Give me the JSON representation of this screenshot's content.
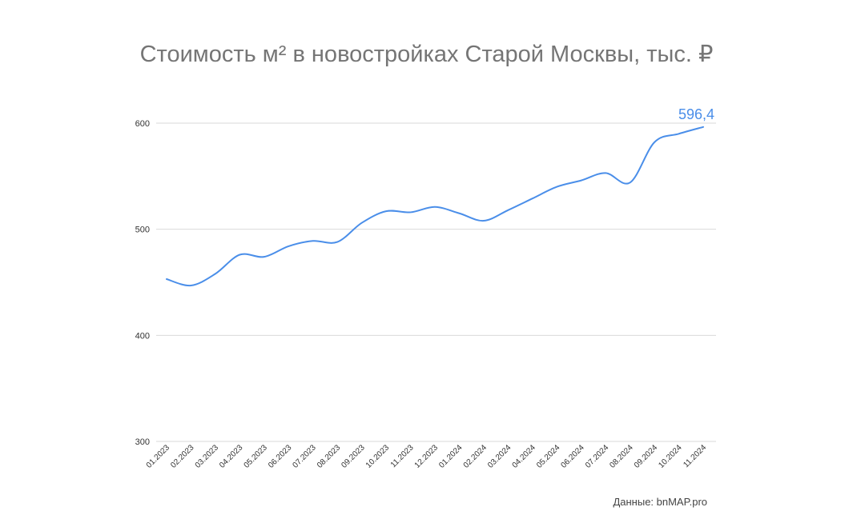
{
  "colors": {
    "line": "#4a8ee9",
    "last_label": "#4a8ee9",
    "grid": "#d9d9d9",
    "title": "#757575",
    "tick": "#333333"
  },
  "chart_data": {
    "type": "line",
    "title": "Стоимость м² в новостройках Старой Москвы, тыс. ₽",
    "xlabel": "",
    "ylabel": "",
    "ylim": [
      300,
      600
    ],
    "yticks": [
      {
        "value": 300,
        "label": "300"
      },
      {
        "value": 400,
        "label": "400"
      },
      {
        "value": 500,
        "label": "500"
      },
      {
        "value": 600,
        "label": "600"
      }
    ],
    "grid": true,
    "legend": "none",
    "categories": [
      "01.2023",
      "02.2023",
      "03.2023",
      "04.2023",
      "05.2023",
      "06.2023",
      "07.2023",
      "08.2023",
      "09.2023",
      "10.2023",
      "11.2023",
      "12.2023",
      "01.2024",
      "02.2024",
      "03.2024",
      "04.2024",
      "05.2024",
      "06.2024",
      "07.2024",
      "08.2024",
      "09.2024",
      "10.2024",
      "11.2024"
    ],
    "series": [
      {
        "values": [
          453,
          447,
          458,
          476,
          474,
          484,
          489,
          488,
          506,
          517,
          516,
          521,
          515,
          508,
          518,
          529,
          540,
          546,
          553,
          544,
          582,
          590,
          596.4
        ]
      }
    ],
    "annotations": [
      {
        "category": "11.2024",
        "text": "596,4"
      }
    ]
  },
  "footer": {
    "source": "Данные: bnMAP.pro"
  }
}
